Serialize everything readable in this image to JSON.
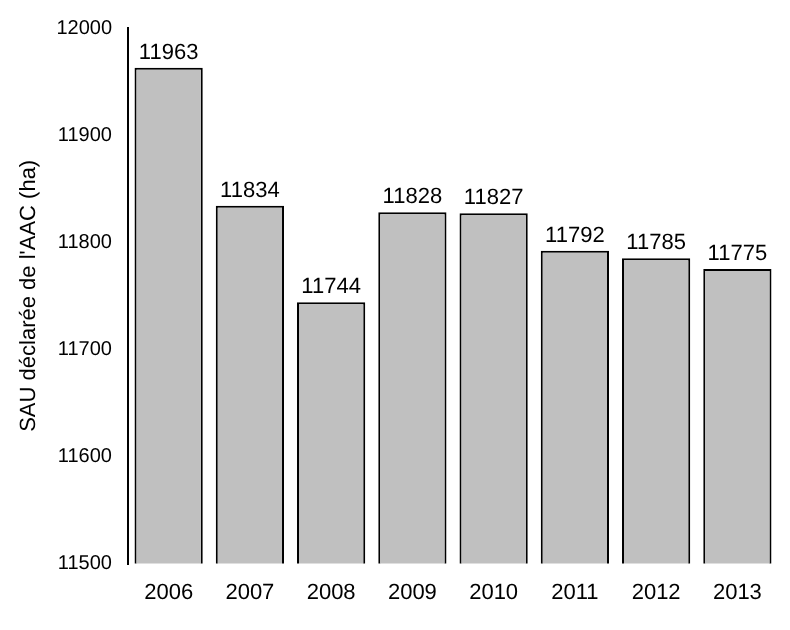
{
  "chart_data": {
    "type": "bar",
    "ylabel": "SAU déclarée de l'AAC (ha)",
    "categories": [
      "2006",
      "2007",
      "2008",
      "2009",
      "2010",
      "2011",
      "2012",
      "2013"
    ],
    "values": [
      11963,
      11834,
      11744,
      11828,
      11827,
      11792,
      11785,
      11775
    ],
    "color": "#c0c0c0",
    "ylim": [
      11500,
      12000
    ],
    "yticks": [
      11500,
      11600,
      11700,
      11800,
      11900,
      12000
    ],
    "grid": false,
    "legend": false,
    "data_labels": true
  }
}
